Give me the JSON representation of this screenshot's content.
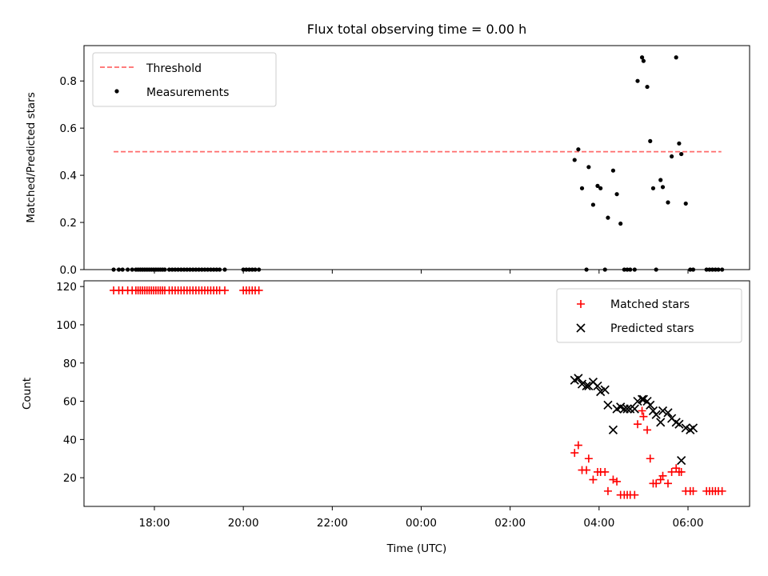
{
  "title": "Flux total observing time = 0.00 h",
  "colors": {
    "threshold": "#ff6b6b",
    "measurements": "#000000",
    "matched": "#ff0000",
    "predicted": "#000000"
  },
  "chart_data": [
    {
      "type": "scatter",
      "ylabel": "Matched/Predicted stars",
      "ylim": [
        0,
        0.95
      ],
      "yticks": [
        "0.0",
        "0.2",
        "0.4",
        "0.6",
        "0.8"
      ],
      "legend": {
        "placement": "top-left",
        "entries": [
          "Threshold",
          "Measurements"
        ]
      },
      "series": [
        {
          "name": "Threshold",
          "kind": "dashed-line",
          "x": [
            "17:05",
            "06:45"
          ],
          "y": [
            0.5,
            0.5
          ]
        },
        {
          "name": "Measurements",
          "kind": "points",
          "x": [
            "17:05",
            "17:12",
            "17:17",
            "17:24",
            "17:30",
            "17:35",
            "17:38",
            "17:41",
            "17:44",
            "17:47",
            "17:50",
            "17:53",
            "17:56",
            "17:59",
            "18:02",
            "18:05",
            "18:08",
            "18:11",
            "18:14",
            "18:20",
            "18:24",
            "18:28",
            "18:32",
            "18:36",
            "18:40",
            "18:44",
            "18:48",
            "18:52",
            "18:56",
            "19:00",
            "19:04",
            "19:08",
            "19:12",
            "19:16",
            "19:20",
            "19:24",
            "19:28",
            "19:35",
            "20:00",
            "20:04",
            "20:08",
            "20:12",
            "20:16",
            "20:21",
            "03:27",
            "03:32",
            "03:37",
            "03:43",
            "03:46",
            "03:52",
            "03:58",
            "04:02",
            "04:08",
            "04:12",
            "04:19",
            "04:24",
            "04:29",
            "04:34",
            "04:38",
            "04:42",
            "04:48",
            "04:52",
            "04:58",
            "05:00",
            "05:05",
            "05:09",
            "05:13",
            "05:17",
            "05:23",
            "05:26",
            "05:33",
            "05:38",
            "05:44",
            "05:48",
            "05:51",
            "05:57",
            "06:03",
            "06:07",
            "06:25",
            "06:29",
            "06:33",
            "06:37",
            "06:41",
            "06:46"
          ],
          "y": [
            0,
            0,
            0,
            0,
            0,
            0,
            0,
            0,
            0,
            0,
            0,
            0,
            0,
            0,
            0,
            0,
            0,
            0,
            0,
            0,
            0,
            0,
            0,
            0,
            0,
            0,
            0,
            0,
            0,
            0,
            0,
            0,
            0,
            0,
            0,
            0,
            0,
            0,
            0,
            0,
            0,
            0,
            0,
            0,
            0.465,
            0.51,
            0.345,
            0,
            0.435,
            0.275,
            0.355,
            0.345,
            0,
            0.22,
            0.42,
            0.32,
            0.195,
            0,
            0,
            0,
            0,
            0.8,
            0.9,
            0.885,
            0.775,
            0.545,
            0.345,
            0,
            0.38,
            0.35,
            0.285,
            0.48,
            0.9,
            0.535,
            0.49,
            0.28,
            0,
            0,
            0,
            0,
            0,
            0,
            0,
            0
          ]
        }
      ]
    },
    {
      "type": "scatter",
      "xlabel": "Time (UTC)",
      "ylabel": "Count",
      "ylim": [
        5,
        123
      ],
      "yticks": [
        "20",
        "40",
        "60",
        "80",
        "100",
        "120"
      ],
      "xticks": [
        "18:00",
        "20:00",
        "22:00",
        "00:00",
        "02:00",
        "04:00",
        "06:00"
      ],
      "legend": {
        "placement": "top-right",
        "entries": [
          "Matched stars",
          "Predicted stars"
        ]
      },
      "series": [
        {
          "name": "Matched stars",
          "marker": "plus",
          "x": [
            "17:05",
            "17:12",
            "17:17",
            "17:24",
            "17:30",
            "17:35",
            "17:38",
            "17:41",
            "17:44",
            "17:47",
            "17:50",
            "17:53",
            "17:56",
            "17:59",
            "18:02",
            "18:05",
            "18:08",
            "18:11",
            "18:14",
            "18:20",
            "18:24",
            "18:28",
            "18:32",
            "18:36",
            "18:40",
            "18:44",
            "18:48",
            "18:52",
            "18:56",
            "19:00",
            "19:04",
            "19:08",
            "19:12",
            "19:16",
            "19:20",
            "19:24",
            "19:28",
            "19:35",
            "20:00",
            "20:04",
            "20:08",
            "20:12",
            "20:16",
            "20:21",
            "03:27",
            "03:32",
            "03:37",
            "03:43",
            "03:46",
            "03:52",
            "03:58",
            "04:02",
            "04:08",
            "04:12",
            "04:19",
            "04:24",
            "04:29",
            "04:34",
            "04:38",
            "04:42",
            "04:48",
            "04:52",
            "04:58",
            "05:00",
            "05:05",
            "05:09",
            "05:13",
            "05:17",
            "05:23",
            "05:26",
            "05:33",
            "05:38",
            "05:44",
            "05:48",
            "05:51",
            "05:57",
            "06:03",
            "06:07",
            "06:25",
            "06:29",
            "06:33",
            "06:37",
            "06:41",
            "06:46"
          ],
          "y": [
            118,
            118,
            118,
            118,
            118,
            118,
            118,
            118,
            118,
            118,
            118,
            118,
            118,
            118,
            118,
            118,
            118,
            118,
            118,
            118,
            118,
            118,
            118,
            118,
            118,
            118,
            118,
            118,
            118,
            118,
            118,
            118,
            118,
            118,
            118,
            118,
            118,
            118,
            118,
            118,
            118,
            118,
            118,
            118,
            33,
            37,
            24,
            24,
            30,
            19,
            23,
            23,
            23,
            13,
            19,
            18,
            11,
            11,
            11,
            11,
            11,
            48,
            55,
            52,
            45,
            30,
            17,
            17,
            19,
            21,
            17,
            23,
            25,
            23,
            23,
            13,
            13,
            13,
            13,
            13,
            13,
            13,
            13,
            13
          ]
        },
        {
          "name": "Predicted stars",
          "marker": "x",
          "x": [
            "03:27",
            "03:32",
            "03:37",
            "03:43",
            "03:46",
            "03:52",
            "03:58",
            "04:02",
            "04:08",
            "04:12",
            "04:19",
            "04:24",
            "04:29",
            "04:34",
            "04:38",
            "04:42",
            "04:48",
            "04:52",
            "04:58",
            "05:00",
            "05:05",
            "05:09",
            "05:13",
            "05:17",
            "05:23",
            "05:26",
            "05:33",
            "05:38",
            "05:44",
            "05:48",
            "05:51",
            "05:57",
            "06:03",
            "06:07"
          ],
          "y": [
            71,
            72,
            69,
            68,
            68,
            70,
            68,
            65,
            66,
            58,
            45,
            56,
            57,
            56,
            56,
            56,
            56,
            60,
            61,
            61,
            60,
            58,
            55,
            53,
            49,
            55,
            54,
            51,
            49,
            48,
            29,
            46,
            45,
            46
          ]
        }
      ]
    }
  ]
}
